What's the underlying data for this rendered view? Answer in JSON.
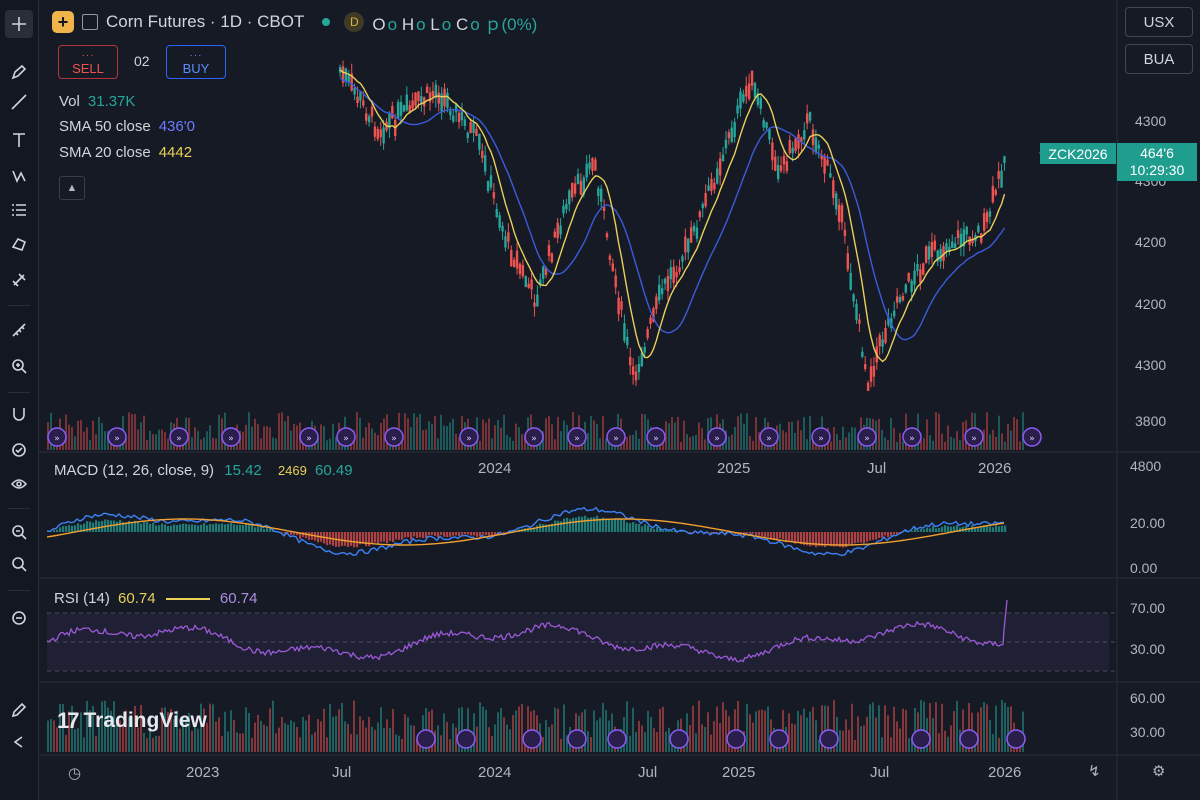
{
  "header": {
    "symbol_icon": "plus-icon",
    "title": "Corn Futures · 1D · CBOT",
    "interval_badge": "D",
    "ohlc": [
      {
        "k": "O",
        "v": "o"
      },
      {
        "k": "H",
        "v": "o"
      },
      {
        "k": "L",
        "v": "o"
      },
      {
        "k": "C",
        "v": "o"
      }
    ],
    "change": "(0%)"
  },
  "trade": {
    "sell_dots": "···",
    "sell_label": "SELL",
    "spread": "02",
    "buy_dots": "···",
    "buy_label": "BUY"
  },
  "legend": {
    "vol_label": "Vol",
    "vol_value": "31.37K",
    "sma50_label": "SMA 50 close",
    "sma50_value": "436'0",
    "sma20_label": "SMA 20 close",
    "sma20_value": "4442"
  },
  "top_right": {
    "currency": "USX",
    "unit": "BUA"
  },
  "price_tag": {
    "name": "ZCK2026",
    "price": "464'6",
    "countdown": "10:29:30"
  },
  "price_axis": [
    "4300",
    "4300",
    "4200",
    "4200",
    "4300",
    "3800",
    "4800"
  ],
  "main_time_axis": [
    "2024",
    "2025",
    "Jul",
    "2026"
  ],
  "macd": {
    "title": "MACD (12, 26, close, 9)",
    "v1": "15.42",
    "v2": "2469",
    "v3": "60.49",
    "axis": [
      "20.00",
      "0.00"
    ]
  },
  "rsi": {
    "title": "RSI (14)",
    "value": "60.74",
    "value2": "60.74",
    "axis": [
      "70.00",
      "30.00"
    ]
  },
  "volume_pane": {
    "logo_text": "TradingView",
    "axis": [
      "60.00",
      "30.00"
    ]
  },
  "bottom_time_axis": [
    "2023",
    "Jul",
    "2024",
    "Jul",
    "2025",
    "Jul",
    "2026"
  ],
  "toolbar": [
    "crosshair-icon",
    "pencil-icon",
    "trendline-icon",
    "text-icon",
    "path-icon",
    "list-icon",
    "shape-icon",
    "magnet-link-icon",
    "ruler-icon",
    "zoom-in-icon",
    "magnet-icon",
    "lock-check-icon",
    "eye-icon",
    "zoom-out-icon",
    "search-icon",
    "reset-icon",
    "brush-icon",
    "back-icon"
  ],
  "colors": {
    "up": "#26a69a",
    "down": "#ef5350",
    "sma20": "#e8d05a",
    "sma50": "#3b5bdb",
    "rsi": "#9b59d6",
    "background": "#161a25"
  },
  "chart_data": {
    "type": "line",
    "title": "Corn Futures · 1D · CBOT",
    "x": [
      "2023",
      "Jul",
      "2024",
      "Jul",
      "2025",
      "Jul",
      "2026"
    ],
    "series": [
      {
        "name": "SMA 20 close",
        "values": [
          4380,
          4330,
          4280,
          4210,
          4330,
          4220,
          4290
        ]
      },
      {
        "name": "SMA 50 close",
        "values": [
          4370,
          4340,
          4270,
          4230,
          4310,
          4230,
          4270
        ]
      }
    ],
    "indicators": [
      "Vol",
      "MACD (12, 26, close, 9)",
      "RSI (14)"
    ],
    "grid": false,
    "legend": "top-left"
  }
}
